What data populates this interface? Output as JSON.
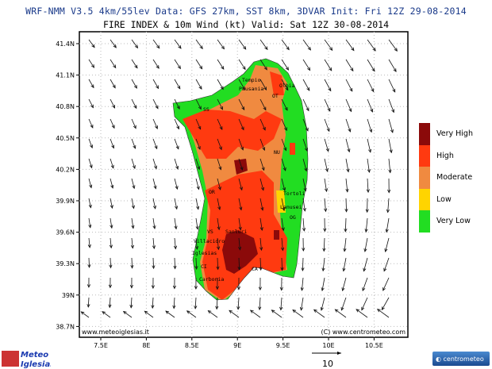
{
  "header": {
    "line1": "WRF-NMM V3.5 4km/55lev  Data: GFS 27km, SST 8km, 3DVAR  Init: Fri 12Z 29-08-2014",
    "line2": "FIRE INDEX & 10m Wind (kt)  Valid: Sat 12Z 30-08-2014"
  },
  "axes": {
    "lat": [
      "41.4N",
      "41.1N",
      "40.8N",
      "40.5N",
      "40.2N",
      "39.9N",
      "39.6N",
      "39.3N",
      "39N",
      "38.7N"
    ],
    "lon": [
      "7.5E",
      "8E",
      "8.5E",
      "9E",
      "9.5E",
      "10E",
      "10.5E"
    ]
  },
  "towns": [
    "Tempio",
    "Pausania",
    "Olbia",
    "OT",
    "SS",
    "NU",
    "OR",
    "Tortoli",
    "Lanusei",
    "OG",
    "VS",
    "Sanluri",
    "Villacidro",
    "Iglesias",
    "CI",
    "Carbonia",
    "CA"
  ],
  "watermarks": {
    "left": "www.meteoiglesias.it",
    "right": "(C) www.centrometeo.com"
  },
  "legend": [
    {
      "label": "Very High",
      "color": "#8b0a0a"
    },
    {
      "label": "High",
      "color": "#ff3a10"
    },
    {
      "label": "Moderate",
      "color": "#f08a40"
    },
    {
      "label": "Low",
      "color": "#ffd400"
    },
    {
      "label": "Very Low",
      "color": "#22dd22"
    }
  ],
  "wind_reference": {
    "value": "10"
  },
  "logos": {
    "left": "Meteo Iglesias",
    "right": "centrometeo"
  }
}
